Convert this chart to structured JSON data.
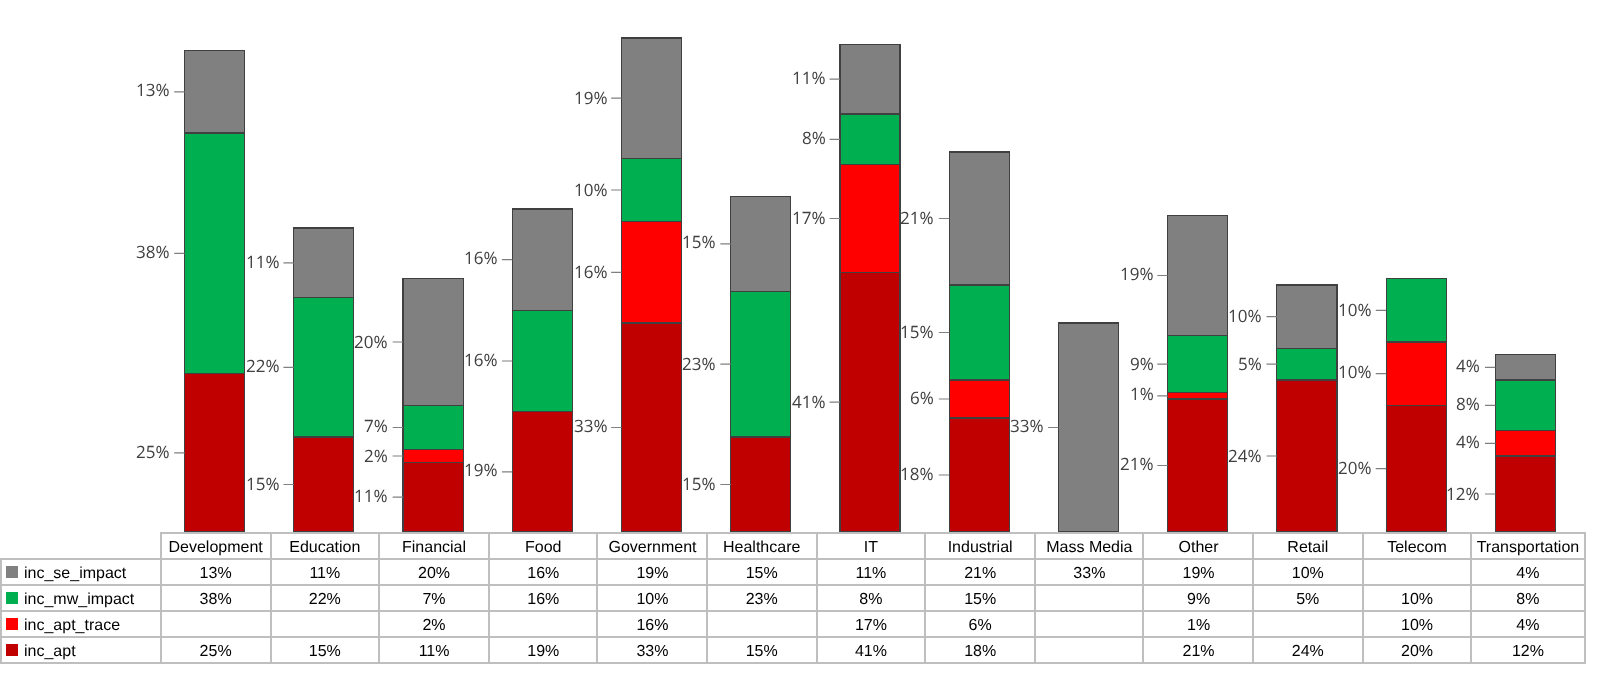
{
  "chart_data": {
    "type": "bar",
    "stacked": true,
    "data_labels": true,
    "legend": "bottom",
    "categories": [
      "Development",
      "Education",
      "Financial",
      "Food",
      "Government",
      "Healthcare",
      "IT",
      "Industrial",
      "Mass Media",
      "Other",
      "Retail",
      "Telecom",
      "Transportation"
    ],
    "series": [
      {
        "name": "inc_apt",
        "color": "#c00000",
        "values": [
          25,
          15,
          11,
          19,
          33,
          15,
          41,
          18,
          null,
          21,
          24,
          20,
          12
        ],
        "value_labels": [
          "25%",
          "15%",
          "11%",
          "19%",
          "33%",
          "15%",
          "41%",
          "18%",
          null,
          "21%",
          "24%",
          "20%",
          "12%"
        ]
      },
      {
        "name": "inc_apt_trace",
        "color": "#ff0000",
        "values": [
          null,
          null,
          2,
          null,
          16,
          null,
          17,
          6,
          null,
          1,
          null,
          10,
          4
        ],
        "value_labels": [
          null,
          null,
          "2%",
          null,
          "16%",
          null,
          "17%",
          "6%",
          null,
          "1%",
          null,
          "10%",
          "4%"
        ]
      },
      {
        "name": "inc_mw_impact",
        "color": "#00b050",
        "values": [
          38,
          22,
          7,
          16,
          10,
          23,
          8,
          15,
          null,
          9,
          5,
          10,
          8
        ],
        "value_labels": [
          "38%",
          "22%",
          "7%",
          "16%",
          "10%",
          "23%",
          "8%",
          "15%",
          null,
          "9%",
          "5%",
          "10%",
          "8%"
        ]
      },
      {
        "name": "inc_se_impact",
        "color": "#808080",
        "values": [
          13,
          11,
          20,
          16,
          19,
          15,
          11,
          21,
          33,
          19,
          10,
          null,
          4
        ],
        "value_labels": [
          "13%",
          "11%",
          "20%",
          "16%",
          "19%",
          "15%",
          "11%",
          "21%",
          "33%",
          "19%",
          "10%",
          null,
          "4%"
        ]
      }
    ]
  }
}
